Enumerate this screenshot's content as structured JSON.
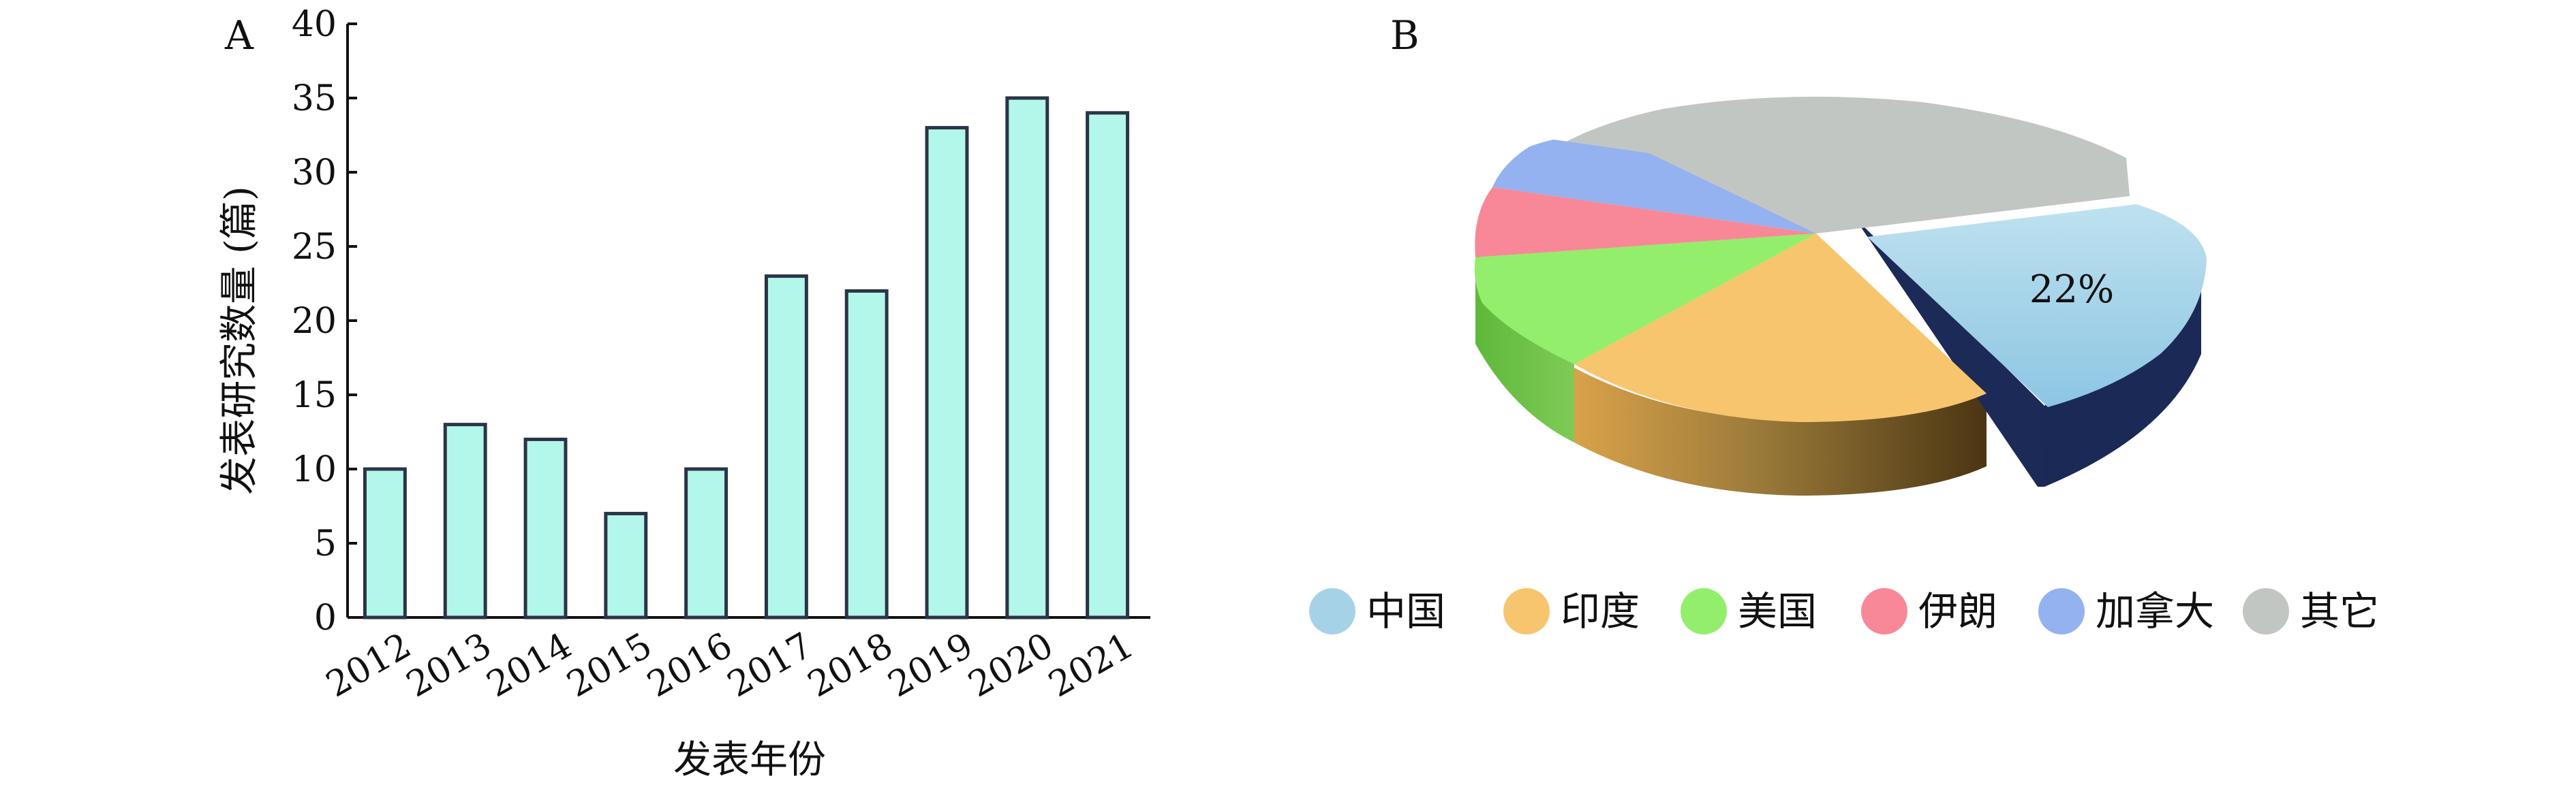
{
  "panels": {
    "a": "A",
    "b": "B"
  },
  "chart_data": [
    {
      "type": "bar",
      "title": "",
      "xlabel": "发表年份",
      "ylabel": "发表研究数量 (篇)",
      "ylim": [
        0,
        40
      ],
      "yticks": [
        "0",
        "5",
        "10",
        "15",
        "20",
        "25",
        "30",
        "35",
        "40"
      ],
      "categories": [
        "2012",
        "2013",
        "2014",
        "2015",
        "2016",
        "2017",
        "2018",
        "2019",
        "2020",
        "2021"
      ],
      "values": [
        10,
        13,
        12,
        7,
        10,
        23,
        22,
        33,
        35,
        34
      ],
      "colors": {
        "bar_fill": "#b3f7ea",
        "bar_stroke": "#2b3447"
      }
    },
    {
      "type": "pie",
      "title": "",
      "style": "3d",
      "labels": [
        "中国",
        "印度",
        "美国",
        "伊朗",
        "加拿大",
        "其它"
      ],
      "values": [
        22,
        21,
        13,
        6,
        5,
        33
      ],
      "colors": [
        "#a5d2e6",
        "#f7c56d",
        "#93ee6b",
        "#f88897",
        "#94b2ef",
        "#c2c6c3"
      ],
      "exploded": "中国",
      "data_labels": [
        {
          "category": "中国",
          "text": "22%"
        }
      ],
      "legend": "bottom"
    }
  ]
}
